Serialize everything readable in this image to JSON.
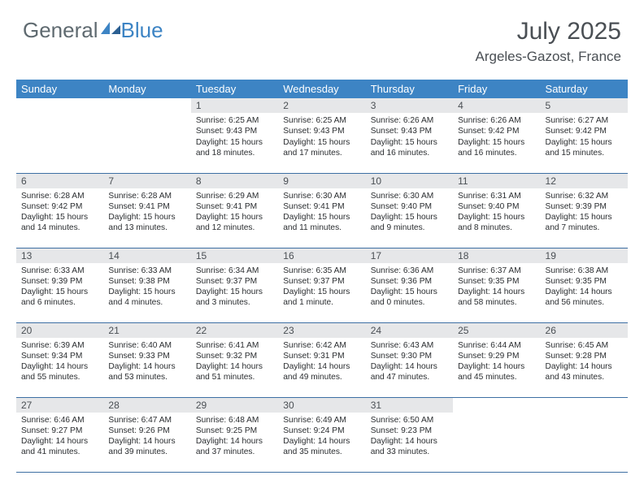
{
  "logo": {
    "text1": "General",
    "text2": "Blue"
  },
  "title": "July 2025",
  "location": "Argeles-Gazost, France",
  "colors": {
    "header_bg": "#3d84c4",
    "daynum_bg": "#e6e7e9",
    "rule": "#3d6fa3",
    "text_dark": "#2a2d30",
    "text_mid": "#4a4f54"
  },
  "day_names": [
    "Sunday",
    "Monday",
    "Tuesday",
    "Wednesday",
    "Thursday",
    "Friday",
    "Saturday"
  ],
  "weeks": [
    [
      null,
      null,
      {
        "n": "1",
        "sr": "6:25 AM",
        "ss": "9:43 PM",
        "dh": "15",
        "dm": "18"
      },
      {
        "n": "2",
        "sr": "6:25 AM",
        "ss": "9:43 PM",
        "dh": "15",
        "dm": "17"
      },
      {
        "n": "3",
        "sr": "6:26 AM",
        "ss": "9:43 PM",
        "dh": "15",
        "dm": "16"
      },
      {
        "n": "4",
        "sr": "6:26 AM",
        "ss": "9:42 PM",
        "dh": "15",
        "dm": "16"
      },
      {
        "n": "5",
        "sr": "6:27 AM",
        "ss": "9:42 PM",
        "dh": "15",
        "dm": "15"
      }
    ],
    [
      {
        "n": "6",
        "sr": "6:28 AM",
        "ss": "9:42 PM",
        "dh": "15",
        "dm": "14"
      },
      {
        "n": "7",
        "sr": "6:28 AM",
        "ss": "9:41 PM",
        "dh": "15",
        "dm": "13"
      },
      {
        "n": "8",
        "sr": "6:29 AM",
        "ss": "9:41 PM",
        "dh": "15",
        "dm": "12"
      },
      {
        "n": "9",
        "sr": "6:30 AM",
        "ss": "9:41 PM",
        "dh": "15",
        "dm": "11"
      },
      {
        "n": "10",
        "sr": "6:30 AM",
        "ss": "9:40 PM",
        "dh": "15",
        "dm": "9"
      },
      {
        "n": "11",
        "sr": "6:31 AM",
        "ss": "9:40 PM",
        "dh": "15",
        "dm": "8"
      },
      {
        "n": "12",
        "sr": "6:32 AM",
        "ss": "9:39 PM",
        "dh": "15",
        "dm": "7"
      }
    ],
    [
      {
        "n": "13",
        "sr": "6:33 AM",
        "ss": "9:39 PM",
        "dh": "15",
        "dm": "6"
      },
      {
        "n": "14",
        "sr": "6:33 AM",
        "ss": "9:38 PM",
        "dh": "15",
        "dm": "4"
      },
      {
        "n": "15",
        "sr": "6:34 AM",
        "ss": "9:37 PM",
        "dh": "15",
        "dm": "3"
      },
      {
        "n": "16",
        "sr": "6:35 AM",
        "ss": "9:37 PM",
        "dh": "15",
        "dm": "1",
        "sing": true
      },
      {
        "n": "17",
        "sr": "6:36 AM",
        "ss": "9:36 PM",
        "dh": "15",
        "dm": "0"
      },
      {
        "n": "18",
        "sr": "6:37 AM",
        "ss": "9:35 PM",
        "dh": "14",
        "dm": "58"
      },
      {
        "n": "19",
        "sr": "6:38 AM",
        "ss": "9:35 PM",
        "dh": "14",
        "dm": "56"
      }
    ],
    [
      {
        "n": "20",
        "sr": "6:39 AM",
        "ss": "9:34 PM",
        "dh": "14",
        "dm": "55"
      },
      {
        "n": "21",
        "sr": "6:40 AM",
        "ss": "9:33 PM",
        "dh": "14",
        "dm": "53"
      },
      {
        "n": "22",
        "sr": "6:41 AM",
        "ss": "9:32 PM",
        "dh": "14",
        "dm": "51"
      },
      {
        "n": "23",
        "sr": "6:42 AM",
        "ss": "9:31 PM",
        "dh": "14",
        "dm": "49"
      },
      {
        "n": "24",
        "sr": "6:43 AM",
        "ss": "9:30 PM",
        "dh": "14",
        "dm": "47"
      },
      {
        "n": "25",
        "sr": "6:44 AM",
        "ss": "9:29 PM",
        "dh": "14",
        "dm": "45"
      },
      {
        "n": "26",
        "sr": "6:45 AM",
        "ss": "9:28 PM",
        "dh": "14",
        "dm": "43"
      }
    ],
    [
      {
        "n": "27",
        "sr": "6:46 AM",
        "ss": "9:27 PM",
        "dh": "14",
        "dm": "41"
      },
      {
        "n": "28",
        "sr": "6:47 AM",
        "ss": "9:26 PM",
        "dh": "14",
        "dm": "39"
      },
      {
        "n": "29",
        "sr": "6:48 AM",
        "ss": "9:25 PM",
        "dh": "14",
        "dm": "37"
      },
      {
        "n": "30",
        "sr": "6:49 AM",
        "ss": "9:24 PM",
        "dh": "14",
        "dm": "35"
      },
      {
        "n": "31",
        "sr": "6:50 AM",
        "ss": "9:23 PM",
        "dh": "14",
        "dm": "33"
      },
      null,
      null
    ]
  ]
}
